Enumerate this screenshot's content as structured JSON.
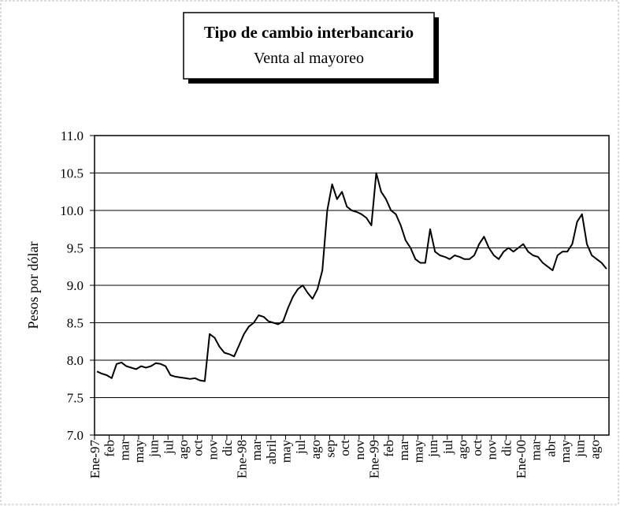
{
  "chart_data": {
    "type": "line",
    "title": "Tipo de cambio interbancario",
    "subtitle": "Venta al mayoreo",
    "y_label": "Pesos por dólar",
    "categories": [
      "Ene-97",
      null,
      null,
      "feb",
      null,
      null,
      "mar",
      null,
      null,
      "may",
      null,
      null,
      "jun",
      null,
      null,
      "jul",
      null,
      null,
      "ago",
      null,
      null,
      "oct",
      null,
      null,
      "nov",
      null,
      null,
      "dic",
      null,
      null,
      "Ene-98",
      null,
      null,
      "mar",
      null,
      null,
      "abril",
      null,
      null,
      "may",
      null,
      null,
      "jul",
      null,
      null,
      "ago",
      null,
      null,
      "sep",
      null,
      null,
      "oct",
      null,
      null,
      "nov",
      null,
      null,
      "Ene-99",
      null,
      null,
      "feb",
      null,
      null,
      "mar",
      null,
      null,
      "may",
      null,
      null,
      "jun",
      null,
      null,
      "jul",
      null,
      null,
      "ago",
      null,
      null,
      "oct",
      null,
      null,
      "nov",
      null,
      null,
      "dic",
      null,
      null,
      "Ene-00",
      null,
      null,
      "mar",
      null,
      null,
      "abr",
      null,
      null,
      "may",
      null,
      null,
      "jun",
      null,
      null,
      "ago",
      null,
      null
    ],
    "series": [
      {
        "name": "Tipo de cambio",
        "color": "#000000",
        "values": [
          7.85,
          7.82,
          7.8,
          7.76,
          7.95,
          7.97,
          7.92,
          7.9,
          7.88,
          7.92,
          7.9,
          7.92,
          7.96,
          7.95,
          7.92,
          7.8,
          7.78,
          7.77,
          7.76,
          7.75,
          7.76,
          7.73,
          7.72,
          8.35,
          8.3,
          8.18,
          8.1,
          8.08,
          8.05,
          8.2,
          8.35,
          8.45,
          8.5,
          8.6,
          8.58,
          8.52,
          8.5,
          8.48,
          8.52,
          8.7,
          8.85,
          8.95,
          9.0,
          8.9,
          8.82,
          8.95,
          9.2,
          10.0,
          10.35,
          10.15,
          10.25,
          10.05,
          10.0,
          9.98,
          9.95,
          9.9,
          9.8,
          10.5,
          10.25,
          10.15,
          10.0,
          9.95,
          9.8,
          9.6,
          9.5,
          9.35,
          9.3,
          9.3,
          9.75,
          9.45,
          9.4,
          9.38,
          9.35,
          9.4,
          9.38,
          9.35,
          9.35,
          9.4,
          9.55,
          9.65,
          9.5,
          9.4,
          9.35,
          9.45,
          9.5,
          9.45,
          9.5,
          9.55,
          9.45,
          9.4,
          9.38,
          9.3,
          9.25,
          9.2,
          9.4,
          9.45,
          9.45,
          9.55,
          9.85,
          9.95,
          9.55,
          9.4,
          9.35,
          9.3,
          9.22
        ]
      }
    ],
    "ylim": [
      7.0,
      11.0
    ],
    "yticks": [
      {
        "value": 7,
        "label": "7.0"
      },
      {
        "value": 7.5,
        "label": "7.5"
      },
      {
        "value": 8,
        "label": "8.0"
      },
      {
        "value": 8.5,
        "label": "8.5"
      },
      {
        "value": 9,
        "label": "9.0"
      },
      {
        "value": 9.5,
        "label": "9.5"
      },
      {
        "value": 10,
        "label": "10.0"
      },
      {
        "value": 10.5,
        "label": "10.5"
      },
      {
        "value": 11,
        "label": "11.0"
      }
    ],
    "grid": true
  }
}
